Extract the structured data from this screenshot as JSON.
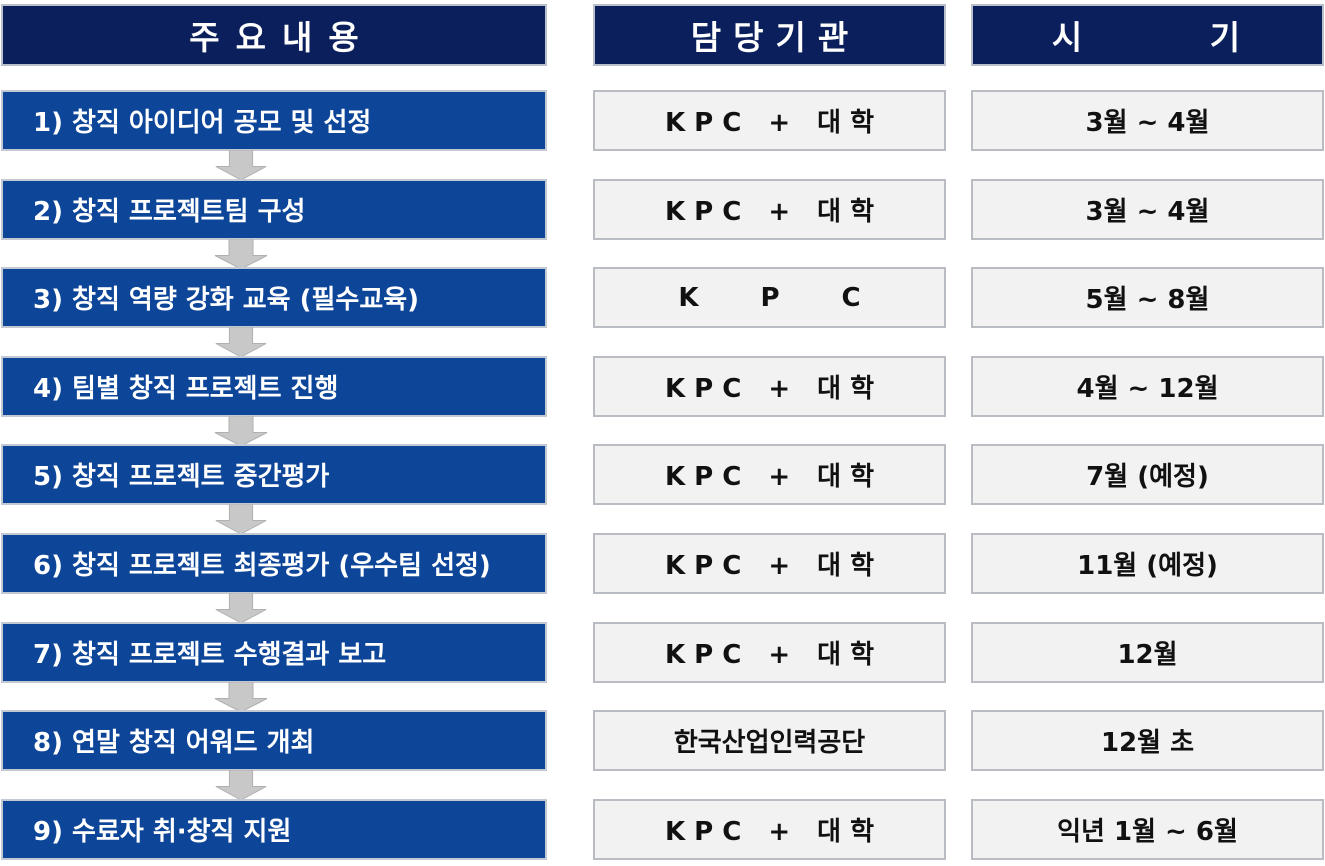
{
  "headers": {
    "content": "주요내용",
    "org": "담당기관",
    "period": "시 기"
  },
  "rows": [
    {
      "content": "1) 창직 아이디어 공모 및 선정",
      "org": "KPC+대학",
      "period": "3월 ~ 4월"
    },
    {
      "content": "2) 창직 프로젝트팀 구성",
      "org": "KPC+대학",
      "period": "3월 ~ 4월"
    },
    {
      "content": "3) 창직 역량 강화 교육 (필수교육)",
      "org": "KPC",
      "period": "5월 ~ 8월"
    },
    {
      "content": "4) 팀별 창직 프로젝트 진행",
      "org": "KPC+대학",
      "period": "4월 ~ 12월"
    },
    {
      "content": "5) 창직 프로젝트 중간평가",
      "org": "KPC+대학",
      "period": "7월 (예정)"
    },
    {
      "content": "6) 창직 프로젝트 최종평가 (우수팀 선정)",
      "org": "KPC+대학",
      "period": "11월 (예정)"
    },
    {
      "content": "7) 창직 프로젝트 수행결과 보고",
      "org": "KPC+대학",
      "period": "12월"
    },
    {
      "content": "8) 연말 창직 어워드 개최",
      "org": "한국산업인력공단",
      "period": "12월 초"
    },
    {
      "content": "9) 수료자 취·창직 지원",
      "org": "KPC+대학",
      "period": "익년 1월 ~ 6월"
    }
  ],
  "colors": {
    "header_bg": "#0b1f5c",
    "step_bg": "#0d4599",
    "cell_bg": "#f2f2f2",
    "arrow": "#c8c8c8"
  }
}
